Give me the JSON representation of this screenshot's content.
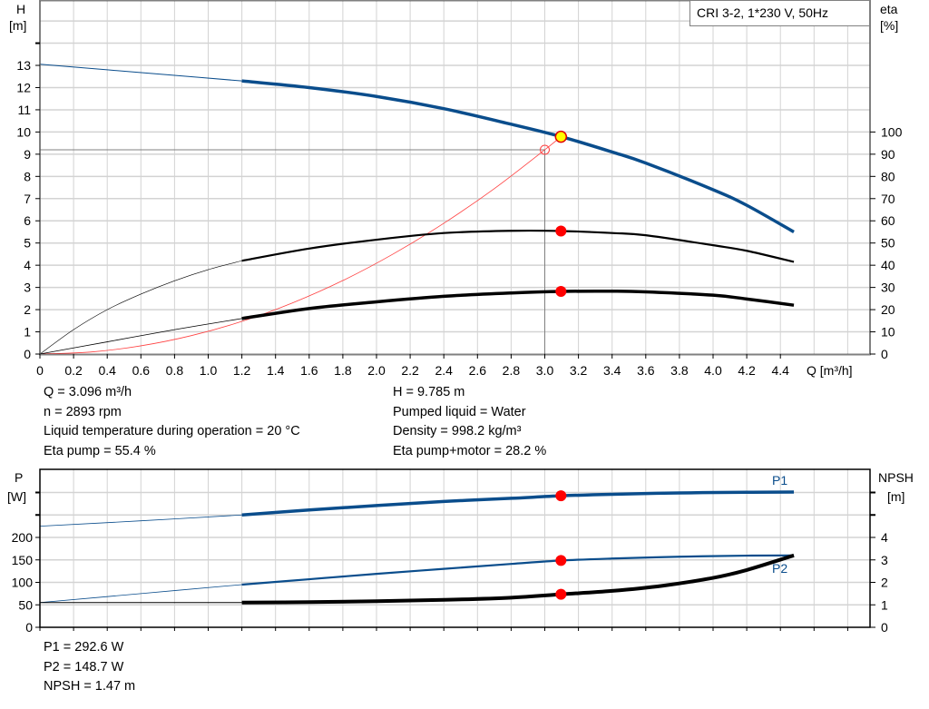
{
  "legend_box": "CRI 3-2, 1*230 V, 50Hz",
  "colors": {
    "head": "#0a4d8c",
    "eta": "#000000",
    "system": "#ff4040",
    "duty_point": "#ff0000",
    "op_point_fill": "#ffff00",
    "grid": "#d3d3d3"
  },
  "chart_data": [
    {
      "type": "line",
      "title": "",
      "xlabel": "Q [m³/h]",
      "ylabel": "H\n[m]",
      "y2label": "eta\n[%]",
      "xlim": [
        0,
        4.8
      ],
      "ylim": [
        0,
        16
      ],
      "y2lim": [
        0,
        160
      ],
      "xticks": [
        "0",
        "0.2",
        "0.4",
        "0.6",
        "0.8",
        "1.0",
        "1.2",
        "1.4",
        "1.6",
        "1.8",
        "2.0",
        "2.2",
        "2.4",
        "2.6",
        "2.8",
        "3.0",
        "3.2",
        "3.4",
        "3.6",
        "3.8",
        "4.0",
        "4.2",
        "4.4"
      ],
      "yticks": [
        0,
        1,
        2,
        3,
        4,
        5,
        6,
        7,
        8,
        9,
        10,
        11,
        12,
        13
      ],
      "y2ticks": [
        0,
        10,
        20,
        30,
        40,
        50,
        60,
        70,
        80,
        90,
        100
      ],
      "grid": true,
      "series": [
        {
          "name": "H",
          "axis": "left",
          "x": [
            0,
            0.4,
            0.8,
            1.2,
            1.6,
            2.0,
            2.4,
            2.8,
            3.1,
            3.4,
            3.6,
            4.0,
            4.2,
            4.48
          ],
          "y": [
            13.05,
            12.8,
            12.55,
            12.3,
            12.0,
            11.6,
            11.05,
            10.35,
            9.785,
            9.1,
            8.6,
            7.4,
            6.7,
            5.5
          ],
          "valid_from": 1.2
        },
        {
          "name": "Eta pump",
          "axis": "right",
          "x": [
            0,
            0.2,
            0.4,
            0.6,
            0.8,
            1.0,
            1.2,
            1.6,
            2.0,
            2.4,
            2.8,
            3.1,
            3.4,
            3.6,
            4.0,
            4.2,
            4.48
          ],
          "y": [
            0,
            11,
            20,
            27,
            33,
            38,
            42,
            47.5,
            51.5,
            54.5,
            55.5,
            55.4,
            54.5,
            53.5,
            49,
            46.5,
            41.5
          ],
          "valid_from": 1.2
        },
        {
          "name": "Eta pump+motor",
          "axis": "right",
          "x": [
            0,
            0.4,
            0.8,
            1.2,
            1.6,
            2.0,
            2.4,
            2.8,
            3.1,
            3.4,
            3.6,
            4.0,
            4.2,
            4.48
          ],
          "y": [
            0,
            5.5,
            11,
            16,
            20.5,
            23.5,
            26,
            27.5,
            28.2,
            28.3,
            28,
            26.5,
            24.8,
            22
          ],
          "valid_from": 1.2
        },
        {
          "name": "System curve",
          "axis": "left",
          "x": [
            0,
            0.3,
            0.6,
            0.9,
            1.2,
            1.5,
            1.8,
            2.1,
            2.4,
            2.7,
            3.0,
            3.1
          ],
          "y": [
            0,
            0.09,
            0.37,
            0.83,
            1.47,
            2.3,
            3.31,
            4.51,
            5.89,
            7.45,
            9.2,
            9.82
          ]
        }
      ],
      "operating_point": {
        "Q": 3.096,
        "H": 9.785,
        "eta_pump": 55.4,
        "eta_pump_motor": 28.2
      },
      "setpoint": {
        "Q": 3.0,
        "H": 9.2
      }
    },
    {
      "type": "line",
      "title": "",
      "ylabel": "P\n[W]",
      "y2label": "NPSH\n[m]",
      "xlim": [
        0,
        4.8
      ],
      "ylim": [
        0,
        340
      ],
      "y2lim": [
        0,
        6.8
      ],
      "yticks": [
        0,
        50,
        100,
        150,
        200
      ],
      "y2ticks": [
        0,
        1,
        2,
        3,
        4
      ],
      "grid": true,
      "series": [
        {
          "name": "P1",
          "axis": "left",
          "x": [
            0,
            0.6,
            1.2,
            1.6,
            2.0,
            2.4,
            2.8,
            3.1,
            3.4,
            3.8,
            4.2,
            4.48
          ],
          "y": [
            225,
            237,
            250,
            261,
            271,
            280,
            287,
            292.6,
            296,
            299,
            300.5,
            301
          ],
          "valid_from": 1.2
        },
        {
          "name": "P2",
          "axis": "left",
          "x": [
            0,
            0.6,
            1.2,
            1.6,
            2.0,
            2.4,
            2.8,
            3.1,
            3.4,
            3.8,
            4.2,
            4.48
          ],
          "y": [
            55,
            75,
            95,
            107,
            119,
            130,
            141,
            148.7,
            153,
            157,
            159.5,
            160
          ],
          "valid_from": 1.2
        },
        {
          "name": "NPSH",
          "axis": "right",
          "x": [
            0,
            0.6,
            1.2,
            1.6,
            2.0,
            2.4,
            2.8,
            3.1,
            3.4,
            3.7,
            4.0,
            4.2,
            4.48
          ],
          "y": [
            1.1,
            1.1,
            1.1,
            1.12,
            1.16,
            1.22,
            1.32,
            1.47,
            1.62,
            1.85,
            2.2,
            2.55,
            3.2
          ],
          "valid_from": 1.2
        }
      ],
      "operating_point": {
        "Q": 3.096,
        "P1": 292.6,
        "P2": 148.7,
        "NPSH": 1.47
      }
    }
  ],
  "info_top_left": [
    "Q = 3.096 m³/h",
    "n = 2893 rpm",
    "Liquid temperature during operation = 20 °C",
    "Eta pump = 55.4 %"
  ],
  "info_top_right": [
    "H = 9.785 m",
    "Pumped liquid = Water",
    "Density = 998.2 kg/m³",
    "Eta pump+motor = 28.2 %"
  ],
  "info_bottom": [
    "P1 = 292.6 W",
    "P2 = 148.7 W",
    "NPSH = 1.47 m"
  ]
}
